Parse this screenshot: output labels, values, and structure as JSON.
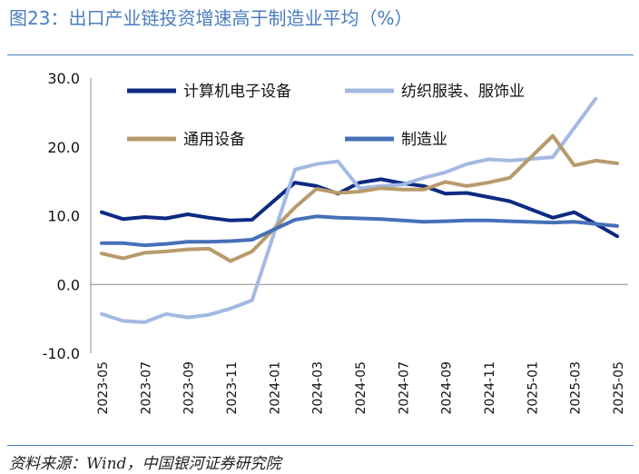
{
  "title": "图23：出口产业链投资增速高于制造业平均（%）",
  "source": "资料来源：Wind，中国银河证券研究院",
  "chart_data": {
    "type": "line",
    "title": "",
    "xlabel": "",
    "ylabel": "",
    "ylim": [
      -10,
      30
    ],
    "yticks": [
      -10,
      0,
      10,
      20,
      30
    ],
    "ytick_labels": [
      "-10.0",
      "0.0",
      "10.0",
      "20.0",
      "30.0"
    ],
    "grid": false,
    "legend_position": "top",
    "x": [
      "2023-05",
      "2023-06",
      "2023-07",
      "2023-08",
      "2023-09",
      "2023-10",
      "2023-11",
      "2023-12",
      "2024-01",
      "2024-02",
      "2024-03",
      "2024-04",
      "2024-05",
      "2024-06",
      "2024-07",
      "2024-08",
      "2024-09",
      "2024-10",
      "2024-11",
      "2024-12",
      "2025-01",
      "2025-02",
      "2025-03",
      "2025-04",
      "2025-05"
    ],
    "xtick_labels": [
      "2023-05",
      "2023-07",
      "2023-09",
      "2023-11",
      "2024-01",
      "2024-03",
      "2024-05",
      "2024-07",
      "2024-09",
      "2024-11",
      "2025-01",
      "2025-03",
      "2025-05"
    ],
    "series": [
      {
        "name": "计算机电子设备",
        "color": "#0d2a82",
        "values": [
          10.5,
          9.5,
          9.8,
          9.6,
          10.2,
          9.7,
          9.3,
          9.4,
          null,
          14.8,
          14.3,
          13.2,
          14.8,
          15.3,
          14.7,
          14.3,
          13.2,
          13.3,
          12.7,
          12.1,
          null,
          9.7,
          10.5,
          8.8,
          7.0
        ]
      },
      {
        "name": "纺织服装、服饰业",
        "color": "#a3b9e3",
        "values": [
          -4.3,
          -5.3,
          -5.5,
          -4.3,
          -4.8,
          -4.4,
          -3.5,
          -2.3,
          null,
          16.7,
          17.5,
          17.9,
          14.0,
          14.3,
          14.5,
          15.5,
          16.3,
          17.5,
          18.2,
          18.0,
          null,
          18.5,
          null,
          27.0,
          null
        ]
      },
      {
        "name": "通用设备",
        "color": "#b89a6c",
        "values": [
          4.5,
          3.8,
          4.6,
          4.8,
          5.1,
          5.2,
          3.4,
          4.8,
          null,
          11.2,
          13.9,
          13.3,
          13.5,
          14.0,
          13.8,
          13.8,
          14.9,
          14.3,
          14.8,
          15.5,
          null,
          21.6,
          17.3,
          18.0,
          17.6
        ]
      },
      {
        "name": "制造业",
        "color": "#4670b8",
        "values": [
          6.0,
          6.0,
          5.7,
          5.9,
          6.2,
          6.2,
          6.3,
          6.5,
          null,
          9.4,
          9.9,
          9.7,
          9.6,
          9.5,
          9.3,
          9.1,
          9.2,
          9.3,
          9.3,
          9.2,
          null,
          9.0,
          9.1,
          8.8,
          8.5
        ]
      }
    ]
  }
}
